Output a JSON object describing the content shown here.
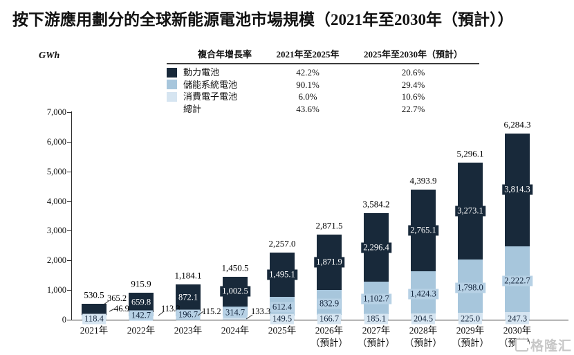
{
  "title": "按下游應用劃分的全球新能源電池市場規模（2021年至2030年（預計））",
  "y_axis": {
    "unit": "GWh",
    "ticks": [
      {
        "label": "7,000",
        "value": 7000
      },
      {
        "label": "6,000",
        "value": 6000
      },
      {
        "label": "5,000",
        "value": 5000
      },
      {
        "label": "4,000",
        "value": 4000
      },
      {
        "label": "3,000",
        "value": 3000
      },
      {
        "label": "2,000",
        "value": 2000
      },
      {
        "label": "1,000",
        "value": 1000
      },
      {
        "label": "0",
        "value": 0
      }
    ]
  },
  "legend_table": {
    "header": [
      "複合年增長率",
      "2021年至2025年",
      "2025年至2030年（預計）"
    ],
    "rows": [
      {
        "label": "動力電池",
        "swatch": "#18293a",
        "cagr_2021_2025": "42.2%",
        "cagr_2025_2030": "20.6%"
      },
      {
        "label": "儲能系統電池",
        "swatch": "#a7c6dc",
        "cagr_2021_2025": "90.1%",
        "cagr_2025_2030": "29.4%"
      },
      {
        "label": "消費電子電池",
        "swatch": "#d6e5f1",
        "cagr_2021_2025": "6.0%",
        "cagr_2025_2030": "10.6%"
      },
      {
        "label": "總計",
        "swatch": null,
        "cagr_2021_2025": "43.6%",
        "cagr_2025_2030": "22.7%"
      }
    ]
  },
  "chart_data": {
    "type": "bar",
    "stacked": true,
    "title": "按下游應用劃分的全球新能源電池市場規模（2021年至2030年（預計））",
    "ylabel": "GWh",
    "ylim": [
      0,
      7000
    ],
    "grid": false,
    "categories": [
      "2021年",
      "2022年",
      "2023年",
      "2024年",
      "2025年",
      "2026年（預計）",
      "2027年（預計）",
      "2028年（預計）",
      "2029年（預計）",
      "2030年（預計）"
    ],
    "x_tick_lines": [
      [
        "2021年"
      ],
      [
        "2022年"
      ],
      [
        "2023年"
      ],
      [
        "2024年"
      ],
      [
        "2025年"
      ],
      [
        "2026年",
        "（預計）"
      ],
      [
        "2027年",
        "（預計）"
      ],
      [
        "2028年",
        "（預計）"
      ],
      [
        "2029年",
        "（預計）"
      ],
      [
        "2030年",
        "（預計）"
      ]
    ],
    "series": [
      {
        "name": "消費電子電池",
        "color": "#d6e5f1",
        "values": [
          118.4,
          113.3,
          115.2,
          133.3,
          149.5,
          166.7,
          185.1,
          204.5,
          225.0,
          247.3
        ],
        "labels": [
          "118.4",
          "113.3",
          "115.2",
          "133.3",
          "149.5",
          "166.7",
          "185.1",
          "204.5",
          "225.0",
          "247.3"
        ]
      },
      {
        "name": "儲能系統電池",
        "color": "#a7c6dc",
        "values": [
          46.9,
          142.7,
          196.7,
          314.7,
          612.4,
          832.9,
          1102.7,
          1424.3,
          1798.0,
          2222.7
        ],
        "labels": [
          "46.9",
          "142.7",
          "196.7",
          "314.7",
          "612.4",
          "832.9",
          "1,102.7",
          "1,424.3",
          "1,798.0",
          "2,222.7"
        ]
      },
      {
        "name": "動力電池",
        "color": "#18293a",
        "values": [
          365.2,
          659.8,
          872.1,
          1002.5,
          1495.1,
          1871.9,
          2296.4,
          2765.1,
          3273.1,
          3814.3
        ],
        "labels": [
          "365.2",
          "659.8",
          "872.1",
          "1,002.5",
          "1,495.1",
          "1,871.9",
          "2,296.4",
          "2,765.1",
          "3,273.1",
          "3,814.3"
        ]
      }
    ],
    "totals": [
      530.5,
      915.9,
      1184.1,
      1450.5,
      2257.0,
      2871.5,
      3584.2,
      4393.9,
      5296.1,
      6284.3
    ],
    "total_labels": [
      "530.5",
      "915.9",
      "1,184.1",
      "1,450.5",
      "2,257.0",
      "2,871.5",
      "3,584.2",
      "4,393.9",
      "5,296.1",
      "6,284.3"
    ],
    "legend_position": "top"
  },
  "watermark": {
    "text": "格隆汇"
  }
}
